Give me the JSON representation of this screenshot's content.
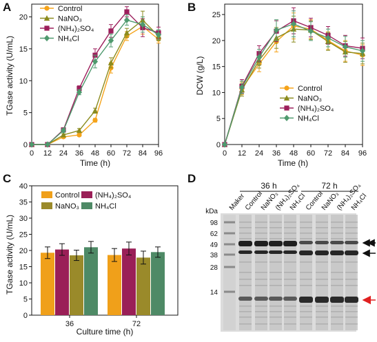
{
  "colors": {
    "control": "#f5a31a",
    "nano3": "#8b8b1e",
    "nh4so4": "#9c1e5b",
    "nh4cl": "#4f9a6e",
    "c_control": "#f0a01a",
    "c_nano3": "#9a8a2a",
    "c_nh4so4": "#9a1f57",
    "c_nh4cl": "#4e8a66",
    "arrow_red": "#e02020"
  },
  "chart_data": [
    {
      "panel": "A",
      "type": "line",
      "xlabel": "Time (h)",
      "ylabel": "TGase activity (U/mL)",
      "x": [
        0,
        12,
        24,
        36,
        48,
        60,
        72,
        84,
        96
      ],
      "xlim": [
        0,
        96
      ],
      "ylim": [
        0,
        22
      ],
      "yticks": [
        0,
        5,
        10,
        15,
        20
      ],
      "legend_position": "top-left",
      "series": [
        {
          "name": "Control",
          "key": "control",
          "marker": "circle",
          "values": [
            0,
            0,
            1.2,
            1.5,
            3.8,
            12,
            17,
            18.5,
            16.5
          ],
          "errors": [
            0,
            0,
            0.2,
            0.2,
            0.3,
            0.8,
            0.7,
            1.2,
            0.6
          ]
        },
        {
          "name": "NaNO₃",
          "key": "nano3",
          "marker": "triangle",
          "values": [
            0,
            0,
            1.5,
            2.2,
            5.3,
            12.8,
            17.5,
            19.5,
            17
          ],
          "errors": [
            0,
            0,
            0.2,
            0.3,
            0.4,
            0.8,
            0.7,
            1.4,
            0.7
          ]
        },
        {
          "name": "(NH₄)₂SO₄",
          "key": "nh4so4",
          "marker": "square",
          "values": [
            0,
            0,
            2.3,
            8.8,
            14,
            17.8,
            20.8,
            18.3,
            17.5
          ],
          "errors": [
            0,
            0,
            0.3,
            0.4,
            1.0,
            1.0,
            0.8,
            1.4,
            0.9
          ]
        },
        {
          "name": "NH₄Cl",
          "key": "nh4cl",
          "marker": "diamond",
          "values": [
            0,
            0,
            2.2,
            8.2,
            13,
            16.3,
            19.5,
            18.8,
            17.2
          ],
          "errors": [
            0,
            0,
            0.3,
            0.4,
            1.0,
            1.0,
            0.8,
            1.2,
            0.8
          ]
        }
      ]
    },
    {
      "panel": "B",
      "type": "line",
      "xlabel": "Time (h)",
      "ylabel": "DCW (g/L)",
      "x": [
        0,
        12,
        24,
        36,
        48,
        60,
        72,
        84,
        96
      ],
      "xlim": [
        0,
        96
      ],
      "ylim": [
        0,
        27
      ],
      "yticks": [
        0,
        5,
        10,
        15,
        20,
        25
      ],
      "legend_position": "bottom-right",
      "series": [
        {
          "name": "Control",
          "key": "control",
          "marker": "circle",
          "values": [
            0,
            10.8,
            15.5,
            19.8,
            22.8,
            22.2,
            20,
            18,
            17.2
          ],
          "errors": [
            0,
            1.2,
            1.5,
            2.0,
            2.5,
            1.8,
            1.7,
            2.0,
            2.0
          ]
        },
        {
          "name": "NaNO₃",
          "key": "nano3",
          "marker": "triangle",
          "values": [
            0,
            10.5,
            16.2,
            20.5,
            22.2,
            22.0,
            19.8,
            17.8,
            17.5
          ],
          "errors": [
            0,
            1.2,
            1.5,
            2.0,
            2.5,
            1.8,
            1.7,
            2.0,
            2.0
          ]
        },
        {
          "name": "(NH₄)₂SO₄",
          "key": "nh4so4",
          "marker": "square",
          "values": [
            0,
            11.2,
            17.5,
            21.8,
            23.8,
            22.5,
            21.0,
            19.0,
            18.5
          ],
          "errors": [
            0,
            1.3,
            1.5,
            2.0,
            2.5,
            1.8,
            1.7,
            2.0,
            2.0
          ]
        },
        {
          "name": "NH₄Cl",
          "key": "nh4cl",
          "marker": "diamond",
          "values": [
            0,
            11.0,
            16.8,
            22.0,
            23.2,
            21.8,
            20.5,
            18.8,
            18.0
          ],
          "errors": [
            0,
            1.2,
            1.5,
            2.0,
            2.5,
            1.8,
            1.7,
            2.0,
            2.0
          ]
        }
      ]
    },
    {
      "panel": "C",
      "type": "bar",
      "xlabel": "Culture time (h)",
      "ylabel": "TGase activity (U/mL)",
      "categories": [
        "36",
        "72"
      ],
      "ylim": [
        0,
        40
      ],
      "yticks": [
        0,
        5,
        10,
        15,
        20,
        25,
        30,
        35,
        40
      ],
      "legend_position": "top",
      "series": [
        {
          "name": "Control",
          "key": "c_control",
          "values": [
            19.3,
            18.6
          ],
          "errors": [
            1.8,
            2.0
          ]
        },
        {
          "name": "(NH₄)₂SO₄",
          "key": "c_nh4so4",
          "values": [
            20.3,
            20.6
          ],
          "errors": [
            1.8,
            2.0
          ]
        },
        {
          "name": "NaNO₃",
          "key": "c_nano3",
          "values": [
            18.5,
            17.8
          ],
          "errors": [
            1.6,
            2.0
          ]
        },
        {
          "name": "NH₄Cl",
          "key": "c_nh4cl",
          "values": [
            21.0,
            19.5
          ],
          "errors": [
            1.8,
            1.6
          ]
        }
      ]
    }
  ],
  "gel": {
    "panel": "D",
    "unit_label": "kDa",
    "marker_lane_label": "Maker",
    "groups": [
      "36 h",
      "72 h"
    ],
    "lane_labels": [
      "Control",
      "NaNO₃",
      "(NH₄)₂SO₄",
      "NH₄Cl",
      "Control",
      "NaNO₃",
      "(NH₄)₂SO₄",
      "NH₄Cl"
    ],
    "ladder": [
      "98",
      "62",
      "49",
      "38",
      "28",
      "14"
    ],
    "arrows": [
      "double-arrow",
      "arrow",
      "red-arrow"
    ]
  }
}
